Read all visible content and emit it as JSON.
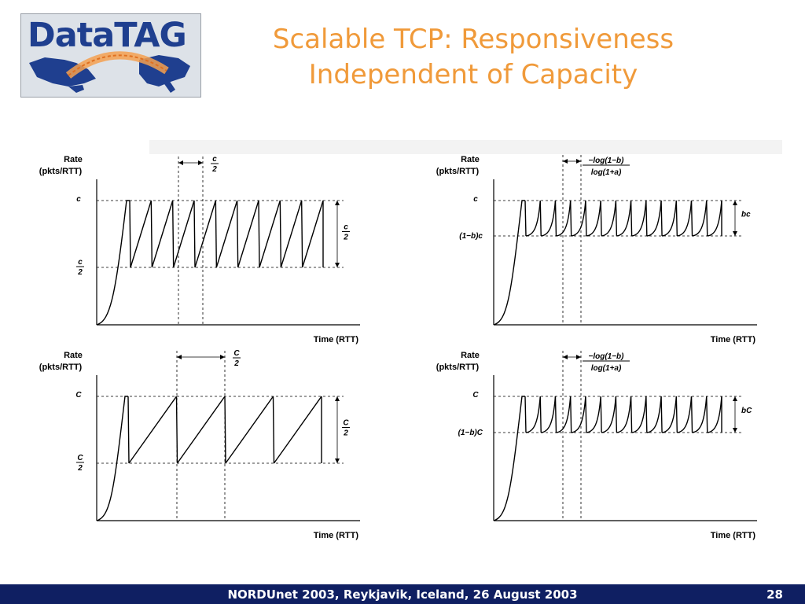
{
  "logo": {
    "text": "DataTAG"
  },
  "title": {
    "line1": "Scalable TCP: Responsiveness",
    "line2": "Independent of Capacity"
  },
  "footer": {
    "text": "NORDUnet 2003, Reykjavik, Iceland, 26 August 2003",
    "slide_number": "28"
  },
  "colors": {
    "title": "#f09a3a",
    "footer_bg": "#0f1f62",
    "logo_text": "#1f3f8f"
  },
  "diagrams": [
    {
      "id": "top-left",
      "type": "sawtooth-linear",
      "teeth": 9,
      "ylabel1": "Rate",
      "ylabel2": "(pkts/RTT)",
      "xlabel": "Time (RTT)",
      "top_label": "c",
      "bottom_label_num": "c",
      "bottom_label_den": "2",
      "interval_label_num": "c",
      "interval_label_den": "2",
      "right_label_num": "c",
      "right_label_den": "2"
    },
    {
      "id": "top-right",
      "type": "sawtooth-exponential",
      "teeth": 13,
      "ylabel1": "Rate",
      "ylabel2": "(pkts/RTT)",
      "xlabel": "Time (RTT)",
      "top_label": "c",
      "bottom_label": "(1−b)c",
      "interval_label_num": "−log(1−b)",
      "interval_label_den": "log(1+a)",
      "right_label": "bc"
    },
    {
      "id": "bottom-left",
      "type": "sawtooth-linear",
      "teeth": 4,
      "ylabel1": "Rate",
      "ylabel2": "(pkts/RTT)",
      "xlabel": "Time (RTT)",
      "top_label": "C",
      "bottom_label_num": "C",
      "bottom_label_den": "2",
      "interval_label_num": "C",
      "interval_label_den": "2",
      "right_label_num": "C",
      "right_label_den": "2"
    },
    {
      "id": "bottom-right",
      "type": "sawtooth-exponential",
      "teeth": 13,
      "ylabel1": "Rate",
      "ylabel2": "(pkts/RTT)",
      "xlabel": "Time (RTT)",
      "top_label": "C",
      "bottom_label": "(1−b)C",
      "interval_label_num": "−log(1−b)",
      "interval_label_den": "log(1+a)",
      "right_label": "bC"
    }
  ]
}
